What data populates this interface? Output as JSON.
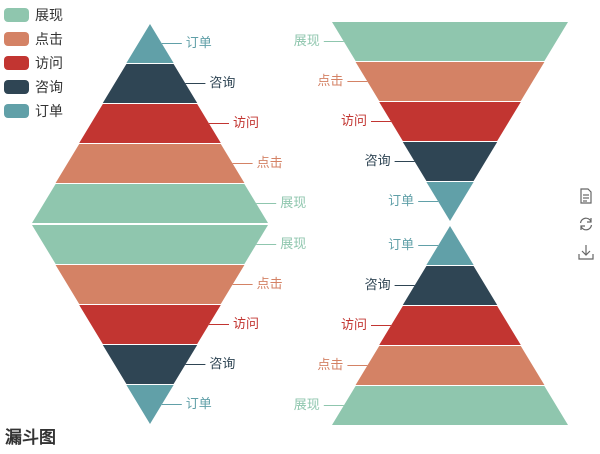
{
  "chart_data": [
    {
      "type": "funnel",
      "sort": "ascending",
      "label_position": "right",
      "categories": [
        "订单",
        "咨询",
        "访问",
        "点击",
        "展现"
      ],
      "values": [
        20,
        40,
        60,
        80,
        100
      ]
    },
    {
      "type": "funnel",
      "sort": "descending",
      "label_position": "right",
      "categories": [
        "展现",
        "点击",
        "访问",
        "咨询",
        "订单"
      ],
      "values": [
        100,
        80,
        60,
        40,
        20
      ]
    },
    {
      "type": "funnel",
      "sort": "descending",
      "label_position": "left",
      "categories": [
        "展现",
        "点击",
        "访问",
        "咨询",
        "订单"
      ],
      "values": [
        100,
        80,
        60,
        40,
        20
      ]
    },
    {
      "type": "funnel",
      "sort": "ascending",
      "label_position": "left",
      "categories": [
        "订单",
        "咨询",
        "访问",
        "点击",
        "展现"
      ],
      "values": [
        20,
        40,
        60,
        80,
        100
      ]
    }
  ],
  "colors": {
    "展现": "#8fc6ae",
    "点击": "#d48265",
    "访问": "#c23531",
    "咨询": "#2f4554",
    "订单": "#61a0a8"
  },
  "legend": {
    "items": [
      "展现",
      "点击",
      "访问",
      "咨询",
      "订单"
    ]
  },
  "title": {
    "text": "漏斗图"
  },
  "toolbox": {
    "icons": [
      "data-view-icon",
      "restore-icon",
      "save-image-icon"
    ]
  }
}
